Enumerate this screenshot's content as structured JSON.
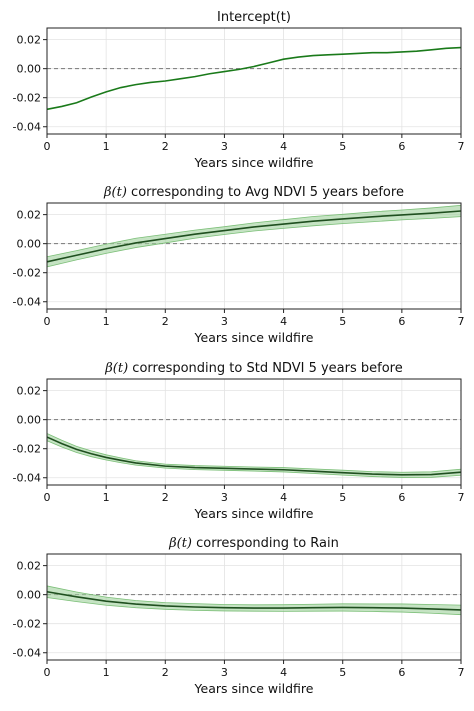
{
  "chart_data": [
    {
      "type": "line",
      "title": "Intercept(t)",
      "xlabel": "Years since wildfire",
      "ylabel": "",
      "xlim": [
        0,
        7
      ],
      "ylim": [
        -0.045,
        0.028
      ],
      "xticks": [
        "0",
        "1",
        "2",
        "3",
        "4",
        "5",
        "6",
        "7"
      ],
      "yticks": [
        "0.02",
        "0.00",
        "-0.02",
        "-0.04"
      ],
      "grid": true,
      "zero_line": true,
      "line_color": "#1a7a1a",
      "series": [
        {
          "x": [
            0,
            0.25,
            0.5,
            0.75,
            1,
            1.25,
            1.5,
            1.75,
            2,
            2.25,
            2.5,
            2.75,
            3,
            3.25,
            3.5,
            3.75,
            4,
            4.25,
            4.5,
            4.75,
            5,
            5.25,
            5.5,
            5.75,
            6,
            6.25,
            6.5,
            6.75,
            7
          ],
          "values": [
            -0.028,
            -0.026,
            -0.0235,
            -0.0195,
            -0.016,
            -0.013,
            -0.011,
            -0.0095,
            -0.0085,
            -0.007,
            -0.0055,
            -0.0035,
            -0.002,
            -0.0005,
            0.0015,
            0.004,
            0.0065,
            0.008,
            0.009,
            0.0095,
            0.01,
            0.0105,
            0.011,
            0.011,
            0.0115,
            0.012,
            0.013,
            0.014,
            0.0145
          ]
        }
      ]
    },
    {
      "type": "line",
      "title_math": "β(t)",
      "title": "corresponding to Avg NDVI 5 years before",
      "xlabel": "Years since wildfire",
      "ylabel": "",
      "xlim": [
        0,
        7
      ],
      "ylim": [
        -0.045,
        0.028
      ],
      "xticks": [
        "0",
        "1",
        "2",
        "3",
        "4",
        "5",
        "6",
        "7"
      ],
      "yticks": [
        "0.02",
        "0.00",
        "-0.02",
        "-0.04"
      ],
      "grid": true,
      "zero_line": true,
      "line_color": "#1f4f1f",
      "band_color": "#9fd19b",
      "series": [
        {
          "x": [
            0,
            0.5,
            1,
            1.5,
            2,
            2.5,
            3,
            3.5,
            4,
            4.5,
            5,
            5.5,
            6,
            6.5,
            7
          ],
          "values": [
            -0.0125,
            -0.008,
            -0.0035,
            0.0005,
            0.0035,
            0.0065,
            0.009,
            0.0115,
            0.0135,
            0.0155,
            0.017,
            0.0185,
            0.0198,
            0.021,
            0.0225
          ],
          "lower": [
            -0.016,
            -0.0112,
            -0.0067,
            -0.0027,
            0.0005,
            0.0037,
            0.0063,
            0.0087,
            0.0105,
            0.0123,
            0.0138,
            0.0151,
            0.0164,
            0.0174,
            0.0186
          ],
          "upper": [
            -0.009,
            -0.0048,
            -0.0003,
            0.0037,
            0.0065,
            0.0093,
            0.0117,
            0.0143,
            0.0165,
            0.0187,
            0.0202,
            0.0219,
            0.0232,
            0.0246,
            0.0264
          ]
        }
      ]
    },
    {
      "type": "line",
      "title_math": "β(t)",
      "title": "corresponding to Std NDVI 5 years before",
      "xlabel": "Years since wildfire",
      "ylabel": "",
      "xlim": [
        0,
        7
      ],
      "ylim": [
        -0.045,
        0.028
      ],
      "xticks": [
        "0",
        "1",
        "2",
        "3",
        "4",
        "5",
        "6",
        "7"
      ],
      "yticks": [
        "0.02",
        "0.00",
        "-0.02",
        "-0.04"
      ],
      "grid": true,
      "zero_line": true,
      "line_color": "#1f4f1f",
      "band_color": "#9fd19b",
      "series": [
        {
          "x": [
            0,
            0.25,
            0.5,
            0.75,
            1,
            1.25,
            1.5,
            2,
            2.5,
            3,
            3.5,
            4,
            4.5,
            5,
            5.5,
            6,
            6.5,
            7
          ],
          "values": [
            -0.012,
            -0.0165,
            -0.0205,
            -0.0235,
            -0.026,
            -0.028,
            -0.0298,
            -0.032,
            -0.033,
            -0.0335,
            -0.034,
            -0.0345,
            -0.0355,
            -0.0365,
            -0.0375,
            -0.038,
            -0.0378,
            -0.0362
          ],
          "lower": [
            -0.0145,
            -0.0188,
            -0.0226,
            -0.0255,
            -0.0278,
            -0.0297,
            -0.0313,
            -0.0334,
            -0.0344,
            -0.0349,
            -0.0354,
            -0.036,
            -0.0371,
            -0.0382,
            -0.0392,
            -0.0398,
            -0.0397,
            -0.0383
          ],
          "upper": [
            -0.0095,
            -0.0142,
            -0.0184,
            -0.0215,
            -0.0242,
            -0.0263,
            -0.0283,
            -0.0306,
            -0.0316,
            -0.0321,
            -0.0326,
            -0.033,
            -0.0339,
            -0.0348,
            -0.0358,
            -0.0362,
            -0.0359,
            -0.0341
          ]
        }
      ]
    },
    {
      "type": "line",
      "title_math": "β(t)",
      "title": "corresponding to Rain",
      "xlabel": "Years since wildfire",
      "ylabel": "",
      "xlim": [
        0,
        7
      ],
      "ylim": [
        -0.045,
        0.028
      ],
      "xticks": [
        "0",
        "1",
        "2",
        "3",
        "4",
        "5",
        "6",
        "7"
      ],
      "yticks": [
        "0.02",
        "0.00",
        "-0.02",
        "-0.04"
      ],
      "grid": true,
      "zero_line": true,
      "line_color": "#1f4f1f",
      "band_color": "#9fd19b",
      "series": [
        {
          "x": [
            0,
            0.5,
            1,
            1.5,
            2,
            2.5,
            3,
            3.5,
            4,
            4.5,
            5,
            5.5,
            6,
            6.5,
            7
          ],
          "values": [
            0.002,
            -0.0015,
            -0.0045,
            -0.0065,
            -0.0078,
            -0.0085,
            -0.009,
            -0.0092,
            -0.0092,
            -0.009,
            -0.0088,
            -0.009,
            -0.0092,
            -0.0098,
            -0.0105
          ],
          "lower": [
            -0.002,
            -0.0048,
            -0.0073,
            -0.009,
            -0.0101,
            -0.0108,
            -0.0112,
            -0.0114,
            -0.0115,
            -0.0114,
            -0.0113,
            -0.0116,
            -0.012,
            -0.0128,
            -0.0138
          ],
          "upper": [
            0.006,
            0.0018,
            -0.0017,
            -0.004,
            -0.0055,
            -0.0062,
            -0.0068,
            -0.007,
            -0.0069,
            -0.0066,
            -0.0063,
            -0.0064,
            -0.0064,
            -0.0068,
            -0.0072
          ]
        }
      ]
    }
  ]
}
